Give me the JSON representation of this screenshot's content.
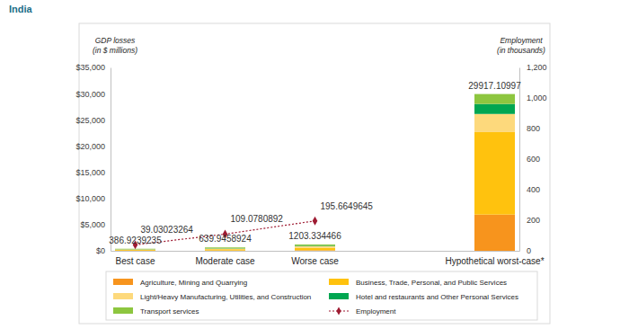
{
  "chart_data": {
    "type": "bar",
    "title": "India",
    "ylabel": [
      "GDP losses",
      "(in $ millions)"
    ],
    "y2label": [
      "Employment",
      "(in thousands)"
    ],
    "categories": [
      "Best case",
      "Moderate case",
      "Worse case",
      null,
      "Hypothetical worst-case*"
    ],
    "stacked": true,
    "grid": false,
    "legend": "bottom",
    "ylim": [
      0,
      35000
    ],
    "yticks": [
      {
        "value": 0,
        "label": "$0"
      },
      {
        "value": 5000,
        "label": "$5,000"
      },
      {
        "value": 10000,
        "label": "$10,000"
      },
      {
        "value": 15000,
        "label": "$15,000"
      },
      {
        "value": 20000,
        "label": "$20,000"
      },
      {
        "value": 25000,
        "label": "$25,000"
      },
      {
        "value": 30000,
        "label": "$30,000"
      },
      {
        "value": 35000,
        "label": "$35,000"
      }
    ],
    "y2lim": [
      0,
      1200
    ],
    "y2ticks": [
      0,
      200,
      400,
      600,
      800,
      {
        "value": 1000,
        "label": "1,000"
      },
      {
        "value": 1200,
        "label": "1,200"
      }
    ],
    "totals": [
      386.9239235,
      639.9458924,
      1203.334466,
      null,
      29917.10997
    ],
    "data_labels": true,
    "series": [
      {
        "name": "Agriculture, Mining and Quarrying",
        "color": "#f7941d",
        "type": "bar",
        "values": [
          30,
          50,
          100,
          null,
          6920
        ]
      },
      {
        "name": "Business, Trade, Personal, and Public Services",
        "color": "#ffc20e",
        "type": "bar",
        "values": [
          150,
          250,
          470,
          null,
          15740
        ]
      },
      {
        "name": "Light/Heavy Manufacturing, Utilities, and Construction",
        "color": "#fdd97c",
        "type": "bar",
        "values": [
          90,
          150,
          280,
          null,
          3460
        ]
      },
      {
        "name": "Hotel and restaurants and Other Personal Services",
        "color": "#00a651",
        "type": "bar",
        "values": [
          40,
          60,
          110,
          null,
          1900
        ]
      },
      {
        "name": "Transport services",
        "color": "#8dc63f",
        "type": "bar",
        "values": [
          77,
          130,
          243,
          null,
          1900
        ]
      },
      {
        "name": "Employment",
        "color": "#9e1b32",
        "type": "line",
        "axis": "y2",
        "marker": "diamond",
        "line_style": "dotted",
        "data_labels": true,
        "values": [
          39.03023264,
          109.0780892,
          195.6649645,
          null,
          null
        ]
      }
    ]
  }
}
